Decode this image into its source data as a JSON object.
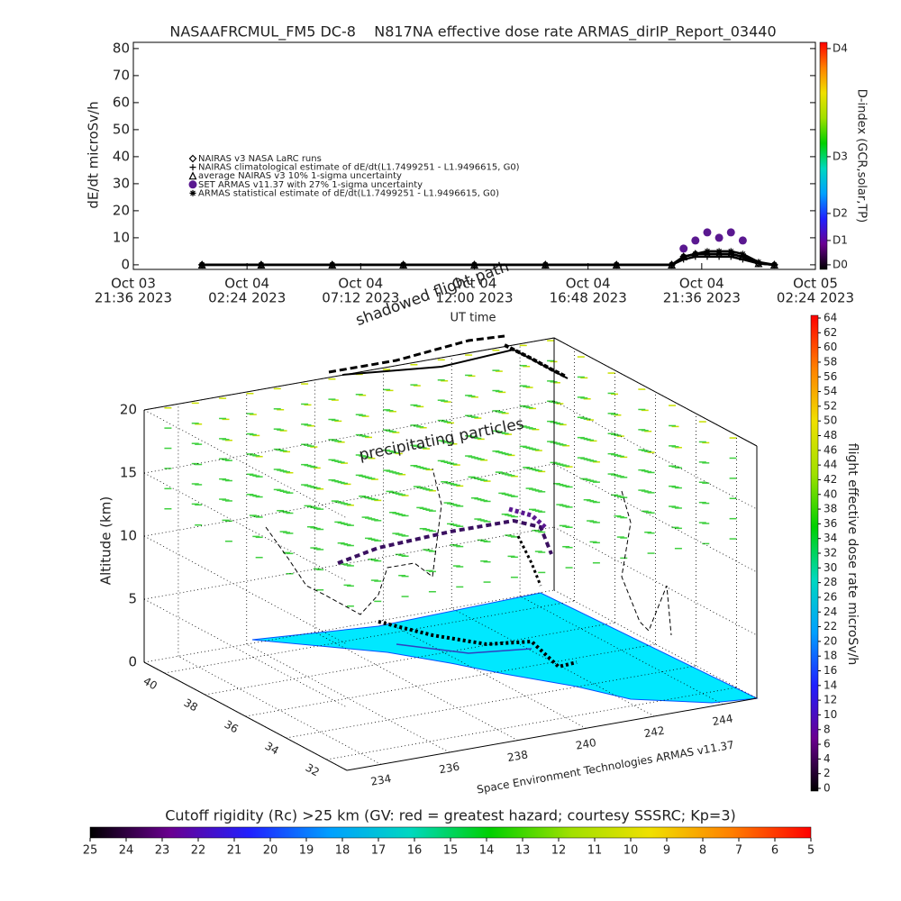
{
  "chart_data": {
    "type": "line",
    "title": "NASAAFRCMUL_FM5 DC-8    N817NA effective dose rate ARMAS_dirIP_Report_03440",
    "y_label": "dE/dt microSv/h",
    "x_label": "UT time",
    "xlim": [
      "2023-10-03 21:36",
      "2023-10-05 02:24"
    ],
    "xticks": [
      {
        "value": "2023-10-03 21:36",
        "label": [
          "Oct 03",
          "21:36 2023"
        ]
      },
      {
        "value": "2023-10-04 02:24",
        "label": [
          "Oct 04",
          "02:24 2023"
        ]
      },
      {
        "value": "2023-10-04 07:12",
        "label": [
          "Oct 04",
          "07:12 2023"
        ]
      },
      {
        "value": "2023-10-04 12:00",
        "label": [
          "Oct 04",
          "12:00 2023"
        ]
      },
      {
        "value": "2023-10-04 16:48",
        "label": [
          "Oct 04",
          "16:48 2023"
        ]
      },
      {
        "value": "2023-10-04 21:36",
        "label": [
          "Oct 04",
          "21:36 2023"
        ]
      },
      {
        "value": "2023-10-05 02:24",
        "label": [
          "Oct 05",
          "02:24 2023"
        ]
      }
    ],
    "ylim": [
      -1.7,
      82.3
    ],
    "yticks": [
      0,
      10,
      20,
      30,
      40,
      50,
      60,
      70,
      80
    ],
    "legend": "left",
    "x": [
      "2023-10-04 00:30",
      "2023-10-04 03:00",
      "2023-10-04 06:00",
      "2023-10-04 09:00",
      "2023-10-04 12:00",
      "2023-10-04 15:00",
      "2023-10-04 18:00",
      "2023-10-04 20:20",
      "2023-10-04 20:50",
      "2023-10-04 21:20",
      "2023-10-04 21:50",
      "2023-10-04 22:20",
      "2023-10-04 22:50",
      "2023-10-04 23:20",
      "2023-10-05 00:00",
      "2023-10-05 00:40"
    ],
    "series": [
      {
        "name": "NAIRAS v3 NASA LaRC runs",
        "color": "#000000",
        "marker": "diamond",
        "line": true,
        "values": [
          0,
          0,
          0,
          0,
          0,
          0,
          0,
          0,
          3,
          4,
          4,
          4,
          4,
          3,
          0.5,
          0
        ]
      },
      {
        "name": "NAIRAS climatological estimate of dE/dt(L1.7499251 - L1.9496615, G0)",
        "color": "#000000",
        "marker": "plus",
        "line": true,
        "values": [
          0,
          0,
          0,
          0,
          0,
          0,
          0,
          0,
          2,
          3,
          3,
          3,
          3,
          2,
          0.5,
          0
        ]
      },
      {
        "name": "average NAIRAS v3 10% 1-sigma uncertainty",
        "color": "#000000",
        "marker": "triangle",
        "line": true,
        "values": [
          0,
          0,
          0,
          0,
          0,
          0,
          0,
          0,
          3,
          4,
          4,
          4,
          4,
          3,
          0.5,
          0
        ]
      },
      {
        "name": "SET ARMAS v11.37 with 27% 1-sigma uncertainty",
        "color": "#5a1890",
        "marker": "circle",
        "line": false,
        "values": [
          null,
          null,
          null,
          null,
          null,
          null,
          null,
          null,
          6,
          9,
          12,
          10,
          12,
          9,
          null,
          null
        ]
      },
      {
        "name": "ARMAS statistical estimate of dE/dt(L1.7499251 - L1.9496615, G0)",
        "color": "#000000",
        "marker": "star",
        "line": true,
        "values": [
          0,
          0,
          0,
          0,
          0,
          0,
          0,
          0,
          3,
          4,
          5,
          5,
          5,
          4,
          1,
          0
        ]
      }
    ],
    "d_index": {
      "label": "D-index (GCR,solar,TP)",
      "ticks": [
        {
          "value": 0,
          "label": "D0"
        },
        {
          "value": 9,
          "label": "D1"
        },
        {
          "value": 19,
          "label": "D2"
        },
        {
          "value": 40,
          "label": "D3"
        },
        {
          "value": 80,
          "label": "D4"
        }
      ]
    }
  },
  "colorscale": [
    "#000000",
    "#6a0090",
    "#2020ff",
    "#00a0ff",
    "#00d8c0",
    "#00d000",
    "#a0e000",
    "#f0e000",
    "#ff8000",
    "#ff0000"
  ],
  "scene": {
    "title": "shadowed flight path",
    "label": "precipitating particles",
    "z_label": "Altitude (km)",
    "zlim": [
      0,
      20
    ],
    "zticks": [
      0,
      5,
      10,
      15,
      20
    ],
    "lat_lim": [
      31,
      41
    ],
    "lat_ticks": [
      40,
      38,
      36,
      34,
      32
    ],
    "lon_lim": [
      233,
      245
    ],
    "lon_ticks": [
      234,
      236,
      238,
      240,
      242,
      244
    ],
    "credit": "Space Environment Technologies ARMAS v11.37"
  },
  "dose_colorbar": {
    "label": "flight effective dose rate microSv/h",
    "lim": [
      0,
      64
    ],
    "ticks": [
      0,
      2,
      4,
      6,
      8,
      10,
      12,
      14,
      16,
      18,
      20,
      22,
      24,
      26,
      28,
      30,
      32,
      34,
      36,
      38,
      40,
      42,
      44,
      46,
      48,
      50,
      52,
      54,
      56,
      58,
      60,
      62,
      64
    ]
  },
  "rigidity_colorbar": {
    "label": "Cutoff rigidity (Rc) >25 km (GV: red = greatest hazard; courtesy SSSRC; Kp=3)",
    "lim": [
      25,
      5
    ],
    "ticks": [
      25,
      24,
      23,
      22,
      21,
      20,
      19,
      18,
      17,
      16,
      15,
      14,
      13,
      12,
      11,
      10,
      9,
      8,
      7,
      6,
      5
    ]
  }
}
